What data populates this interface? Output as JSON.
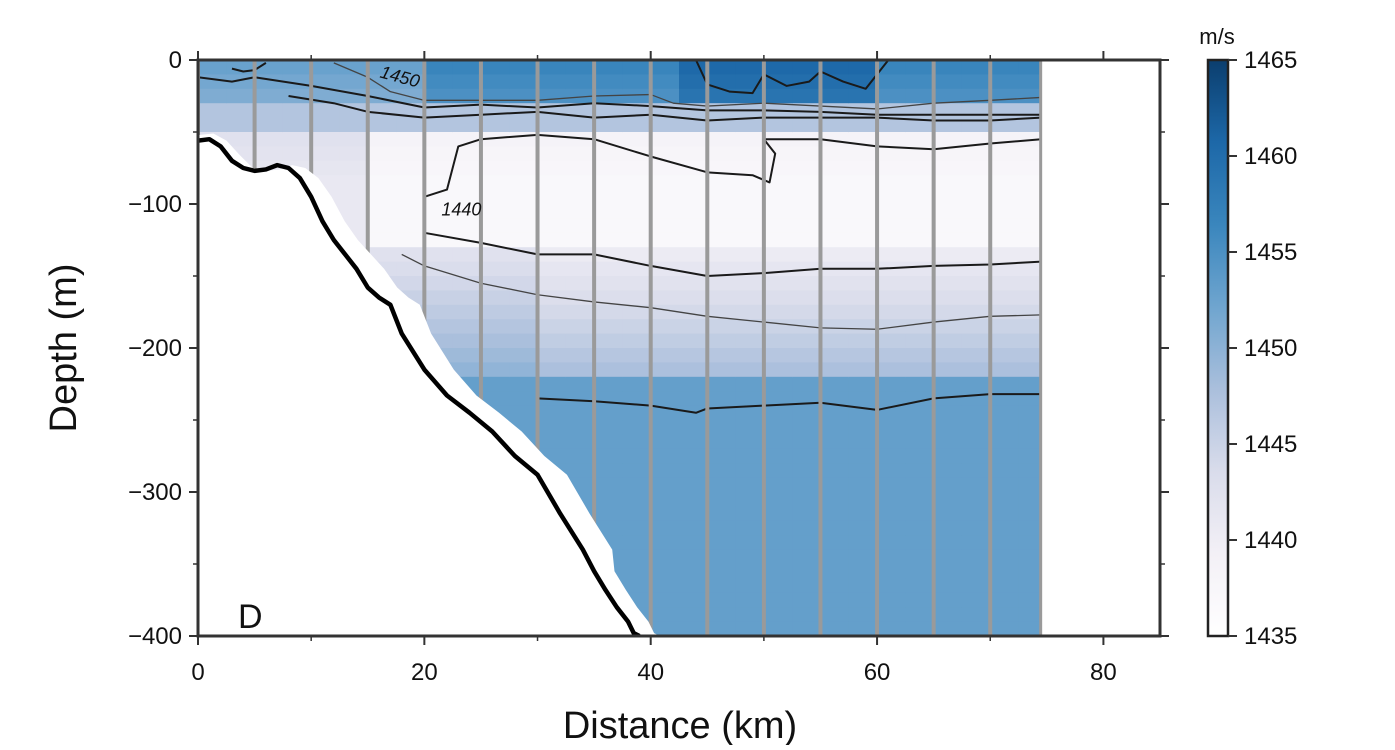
{
  "chart_data": {
    "type": "heatmap",
    "panel_label": "D",
    "xlabel": "Distance (km)",
    "ylabel": "Depth (m)",
    "xlim": [
      0,
      85
    ],
    "ylim": [
      -400,
      0
    ],
    "x_ticks": [
      0,
      20,
      40,
      60,
      80
    ],
    "x_tick_labels": [
      "0",
      "20",
      "40",
      "60",
      "80"
    ],
    "y_ticks": [
      0,
      -100,
      -200,
      -300,
      -400
    ],
    "y_tick_labels": [
      "0",
      "−100",
      "−200",
      "−300",
      "−400"
    ],
    "data_extent_km": 74.5,
    "colorbar": {
      "label": "m/s",
      "min": 1435,
      "max": 1465,
      "ticks": [
        1435,
        1440,
        1445,
        1450,
        1455,
        1460,
        1465
      ],
      "tick_labels": [
        "1435",
        "1440",
        "1445",
        "1450",
        "1455",
        "1460",
        "1465"
      ],
      "colors": [
        "#ffffff",
        "#f3f0f6",
        "#d9dceb",
        "#aabfdc",
        "#6fa5cf",
        "#3a86bd",
        "#1d68a8",
        "#0b3e6e"
      ]
    },
    "station_lines_km": [
      0,
      5,
      10,
      15,
      20,
      25,
      30,
      35,
      40,
      45,
      50,
      55,
      60,
      65,
      70,
      74.5
    ],
    "bathymetry": {
      "distance_km": [
        0,
        1,
        2,
        3,
        4,
        5,
        6,
        7,
        8,
        9,
        10,
        11,
        12,
        13,
        14,
        15,
        16,
        17,
        18,
        20,
        22,
        24,
        26,
        28,
        30,
        32,
        34,
        35,
        36,
        37,
        38,
        38.5,
        39
      ],
      "depth_m": [
        -56,
        -55,
        -60,
        -70,
        -75,
        -77,
        -76,
        -73,
        -75,
        -82,
        -95,
        -112,
        -125,
        -135,
        -145,
        -158,
        -165,
        -170,
        -190,
        -215,
        -233,
        -245,
        -258,
        -275,
        -288,
        -315,
        -340,
        -355,
        -368,
        -380,
        -390,
        -398,
        -400
      ]
    },
    "contours": [
      {
        "level": 1460,
        "distance_km": [
          3,
          4,
          5,
          6
        ],
        "depth_m": [
          -6,
          -8,
          -7,
          -2
        ]
      },
      {
        "level": 1460,
        "distance_km": [
          44,
          45,
          47,
          49,
          50,
          52,
          54,
          55,
          57,
          59,
          60,
          61
        ],
        "depth_m": [
          0,
          -17,
          -22,
          -23,
          -10,
          -18,
          -15,
          -8,
          -15,
          -20,
          -10,
          0
        ]
      },
      {
        "level": 1455,
        "distance_km": [
          12,
          15,
          17,
          20,
          25,
          30,
          35,
          40,
          42,
          45,
          50,
          55,
          60,
          65,
          70,
          74.5
        ],
        "depth_m": [
          -2,
          -12,
          -22,
          -28,
          -28,
          -28,
          -25,
          -24,
          -30,
          -32,
          -30,
          -32,
          -34,
          -30,
          -28,
          -26
        ]
      },
      {
        "level": 1450,
        "distance_km": [
          0,
          3,
          5,
          10,
          15,
          20,
          25,
          30,
          35,
          40,
          45,
          50,
          55,
          60,
          65,
          70,
          74.5
        ],
        "depth_m": [
          -12,
          -15,
          -12,
          -18,
          -25,
          -33,
          -31,
          -33,
          -30,
          -32,
          -35,
          -35,
          -36,
          -38,
          -38,
          -38,
          -38
        ]
      },
      {
        "level": 1445,
        "distance_km": [
          8,
          12,
          15,
          20,
          25,
          30,
          35,
          40,
          45,
          50,
          55,
          60,
          65,
          70,
          74.5
        ],
        "depth_m": [
          -25,
          -30,
          -36,
          -40,
          -38,
          -36,
          -40,
          -38,
          -42,
          -40,
          -40,
          -40,
          -42,
          -42,
          -40
        ]
      },
      {
        "level": 1440,
        "distance_km": [
          20,
          22,
          23,
          25,
          30,
          35,
          40,
          45,
          49,
          50.5,
          51,
          50,
          55,
          60,
          65,
          70,
          74.5
        ],
        "depth_m": [
          -95,
          -90,
          -60,
          -55,
          -52,
          -55,
          -67,
          -78,
          -80,
          -85,
          -65,
          -55,
          -55,
          -60,
          -62,
          -58,
          -55
        ]
      },
      {
        "level": 1445,
        "distance_km": [
          20,
          25,
          30,
          35,
          40,
          45,
          50,
          55,
          60,
          65,
          70,
          74.5
        ],
        "depth_m": [
          -120,
          -127,
          -135,
          -135,
          -143,
          -150,
          -148,
          -145,
          -145,
          -143,
          -142,
          -140
        ]
      },
      {
        "level": 1447,
        "distance_km": [
          18,
          20,
          25,
          30,
          35,
          40,
          45,
          50,
          55,
          60,
          65,
          70,
          74.5
        ],
        "depth_m": [
          -135,
          -143,
          -155,
          -163,
          -168,
          -172,
          -178,
          -182,
          -186,
          -187,
          -182,
          -178,
          -177
        ]
      },
      {
        "level": 1450,
        "distance_km": [
          30,
          35,
          40,
          44,
          45,
          50,
          55,
          60,
          65,
          70,
          74.5
        ],
        "depth_m": [
          -235,
          -237,
          -240,
          -245,
          -242,
          -240,
          -238,
          -243,
          -235,
          -232,
          -232
        ]
      }
    ],
    "contour_labels": [
      {
        "text": "1450",
        "distance_km": 16,
        "depth_m": -12,
        "angle": 15
      },
      {
        "text": "1440",
        "distance_km": 21.5,
        "depth_m": -108,
        "angle": 0
      }
    ]
  }
}
